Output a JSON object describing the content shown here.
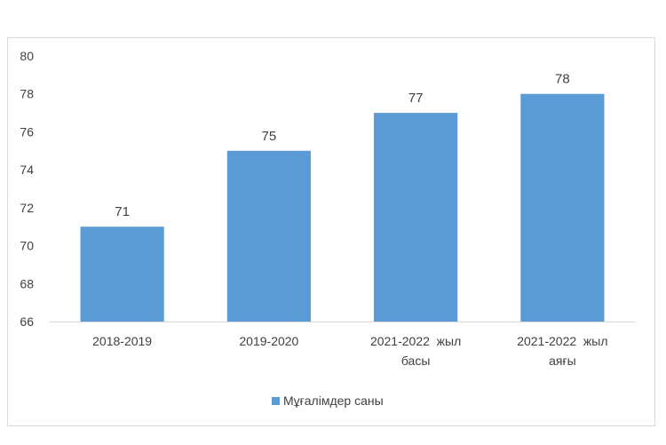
{
  "chart_data": {
    "type": "bar",
    "categories": [
      [
        "2018-2019"
      ],
      [
        "2019-2020"
      ],
      [
        "2021-2022  жыл",
        "басы"
      ],
      [
        "2021-2022  жыл",
        "аяғы"
      ]
    ],
    "series": [
      {
        "name": "Мұғалімдер саны",
        "values": [
          71,
          75,
          77,
          78
        ],
        "color": "#5b9bd5"
      }
    ],
    "data_labels": [
      "71",
      "75",
      "77",
      "78"
    ],
    "y_ticks": [
      "66",
      "68",
      "70",
      "72",
      "74",
      "76",
      "78",
      "80"
    ],
    "ylim": [
      66,
      80
    ],
    "grid": false,
    "legend_position": "bottom"
  }
}
